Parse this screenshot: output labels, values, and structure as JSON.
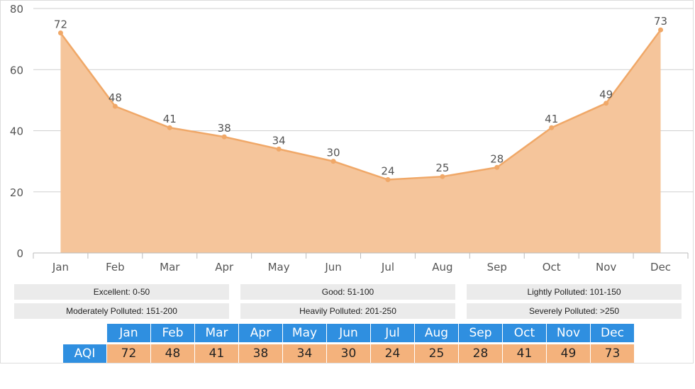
{
  "chart_data": {
    "type": "area",
    "categories": [
      "Jan",
      "Feb",
      "Mar",
      "Apr",
      "May",
      "Jun",
      "Jul",
      "Aug",
      "Sep",
      "Oct",
      "Nov",
      "Dec"
    ],
    "values": [
      72,
      48,
      41,
      38,
      34,
      30,
      24,
      25,
      28,
      41,
      49,
      73
    ],
    "ylim": [
      0,
      80
    ],
    "yticks": [
      0,
      20,
      40,
      60,
      80
    ],
    "grid": true,
    "colors": {
      "fill": "#f5c59b",
      "line": "#f0a868",
      "grid": "#cfcfcf",
      "axis": "#bbbbbb"
    }
  },
  "legend": {
    "rows": [
      [
        "Excellent: 0-50",
        "Good: 51-100",
        "Lightly Polluted: 101-150"
      ],
      [
        "Moderately Polluted: 151-200",
        "Heavily Polluted: 201-250",
        "Severely Polluted: >250"
      ]
    ]
  },
  "table": {
    "row_label": "AQI",
    "months": [
      "Jan",
      "Feb",
      "Mar",
      "Apr",
      "May",
      "Jun",
      "Jul",
      "Aug",
      "Sep",
      "Oct",
      "Nov",
      "Dec"
    ],
    "values": [
      "72",
      "48",
      "41",
      "38",
      "34",
      "30",
      "24",
      "25",
      "28",
      "41",
      "49",
      "73"
    ],
    "colors": {
      "header": "#2f8fe0",
      "cell": "#f4b27c"
    }
  }
}
